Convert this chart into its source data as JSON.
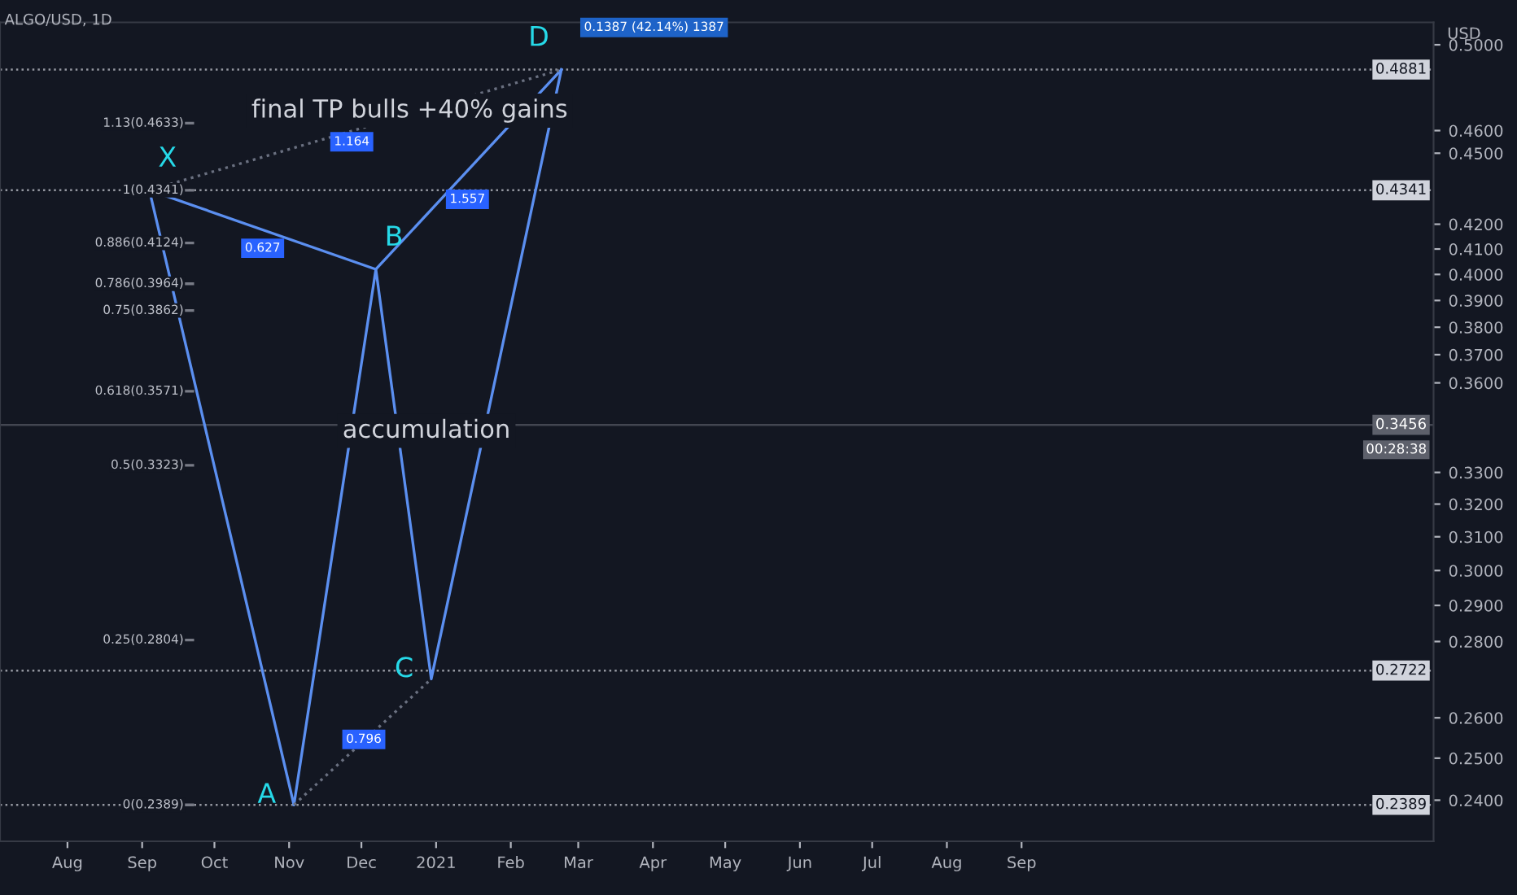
{
  "chart_data": {
    "type": "line",
    "title": "ALGO/USD, 1D",
    "series": [
      {
        "color": "#5b8ff0",
        "line_style": "solid",
        "x": [
          "2020-09-04",
          "2020-11-03",
          "2020-12-07",
          "2020-12-30",
          "2021-02-22"
        ],
        "values": [
          0.4341,
          0.2389,
          0.402,
          0.27,
          0.4881
        ]
      },
      {
        "color": "#5b8ff0",
        "line_style": "solid",
        "x": [
          "2020-09-04",
          "2020-12-07",
          "2021-02-22"
        ],
        "values": [
          0.4341,
          0.402,
          0.4881
        ]
      },
      {
        "color": "#6a7080",
        "line_style": "dotted",
        "x": [
          "2020-11-03",
          "2020-12-30"
        ],
        "values": [
          0.2389,
          0.27
        ]
      },
      {
        "color": "#6a7080",
        "line_style": "dotted",
        "x": [
          "2020-09-04",
          "2021-02-22"
        ],
        "values": [
          0.4341,
          0.4881
        ]
      }
    ],
    "log": "y",
    "xlim": [
      "2020-07-04",
      "2022-02-19"
    ],
    "xticks": [
      {
        "value": "2020-08-01",
        "label": "Aug"
      },
      {
        "value": "2020-09-01",
        "label": "Sep"
      },
      {
        "value": "2020-10-01",
        "label": "Oct"
      },
      {
        "value": "2020-11-01",
        "label": "Nov"
      },
      {
        "value": "2020-12-01",
        "label": "Dec"
      },
      {
        "value": "2021-01-01",
        "label": "2021"
      },
      {
        "value": "2021-02-01",
        "label": "Feb"
      },
      {
        "value": "2021-03-01",
        "label": "Mar"
      },
      {
        "value": "2021-04-01",
        "label": "Apr"
      },
      {
        "value": "2021-05-01",
        "label": "May"
      },
      {
        "value": "2021-06-01",
        "label": "Jun"
      },
      {
        "value": "2021-07-01",
        "label": "Jul"
      },
      {
        "value": "2021-08-01",
        "label": "Aug"
      },
      {
        "value": "2021-09-01",
        "label": "Sep"
      }
    ],
    "ylim": [
      0.2306,
      0.511
    ],
    "yticks": [
      {
        "value": 0.24,
        "label": "0.2400"
      },
      {
        "value": 0.25,
        "label": "0.2500"
      },
      {
        "value": 0.26,
        "label": "0.2600"
      },
      {
        "value": 0.28,
        "label": "0.2800"
      },
      {
        "value": 0.29,
        "label": "0.2900"
      },
      {
        "value": 0.3,
        "label": "0.3000"
      },
      {
        "value": 0.31,
        "label": "0.3100"
      },
      {
        "value": 0.32,
        "label": "0.3200"
      },
      {
        "value": 0.33,
        "label": "0.3300"
      },
      {
        "value": 0.36,
        "label": "0.3600"
      },
      {
        "value": 0.37,
        "label": "0.3700"
      },
      {
        "value": 0.38,
        "label": "0.3800"
      },
      {
        "value": 0.39,
        "label": "0.3900"
      },
      {
        "value": 0.4,
        "label": "0.4000"
      },
      {
        "value": 0.41,
        "label": "0.4100"
      },
      {
        "value": 0.42,
        "label": "0.4200"
      },
      {
        "value": 0.45,
        "label": "0.4500"
      },
      {
        "value": 0.46,
        "label": "0.4600"
      },
      {
        "value": 0.5,
        "label": "0.5000"
      }
    ],
    "y2label": "USD",
    "ref_lines": [
      {
        "axis": "y",
        "value": 0.4881,
        "label": "0.4881",
        "color": "#9598a1",
        "line_style": "dotted"
      },
      {
        "axis": "y",
        "value": 0.4341,
        "label": "0.4341",
        "color": "#9598a1",
        "line_style": "dotted"
      },
      {
        "axis": "y",
        "value": 0.3456,
        "label": "0.3456",
        "color": "#434651",
        "line_style": "solid"
      },
      {
        "axis": "y",
        "value": 0.2722,
        "label": "0.2722",
        "color": "#9598a1",
        "line_style": "dotted"
      },
      {
        "axis": "y",
        "value": 0.2389,
        "label": "0.2389",
        "color": "#9598a1",
        "line_style": "dotted"
      },
      {
        "axis": "y",
        "value": 0.4633,
        "label": "1.13(0.4633)",
        "color": "#787b86",
        "line_style": "solid"
      },
      {
        "axis": "y",
        "value": 0.4341,
        "label": "1(0.4341)",
        "color": "#787b86",
        "line_style": "solid"
      },
      {
        "axis": "y",
        "value": 0.4124,
        "label": "0.886(0.4124)",
        "color": "#787b86",
        "line_style": "solid"
      },
      {
        "axis": "y",
        "value": 0.3964,
        "label": "0.786(0.3964)",
        "color": "#787b86",
        "line_style": "solid"
      },
      {
        "axis": "y",
        "value": 0.3862,
        "label": "0.75(0.3862)",
        "color": "#787b86",
        "line_style": "solid"
      },
      {
        "axis": "y",
        "value": 0.3571,
        "label": "0.618(0.3571)",
        "color": "#787b86",
        "line_style": "solid"
      },
      {
        "axis": "y",
        "value": 0.3323,
        "label": "0.5(0.3323)",
        "color": "#787b86",
        "line_style": "solid"
      },
      {
        "axis": "y",
        "value": 0.2804,
        "label": "0.25(0.2804)",
        "color": "#787b86",
        "line_style": "solid"
      },
      {
        "axis": "y",
        "value": 0.2389,
        "label": "0(0.2389)",
        "color": "#787b86",
        "line_style": "solid"
      }
    ],
    "annotations": [
      {
        "text": "X",
        "x": "2020-09-04",
        "y": 0.4341
      },
      {
        "text": "A",
        "x": "2020-11-03",
        "y": 0.2389
      },
      {
        "text": "B",
        "x": "2020-12-07",
        "y": 0.402
      },
      {
        "text": "C",
        "x": "2020-12-30",
        "y": 0.27
      },
      {
        "text": "D",
        "x": "2021-02-22",
        "y": 0.4881
      },
      {
        "text": "1.164",
        "x": "2020-11-27",
        "y": 0.455
      },
      {
        "text": "0.627",
        "x": "2020-10-21",
        "y": 0.4103
      },
      {
        "text": "1.557",
        "x": "2021-01-14",
        "y": 0.4303
      },
      {
        "text": "0.796",
        "x": "2020-12-02",
        "y": 0.2546
      },
      "0.1387 (42.14%) 1387",
      {
        "text": "final TP bulls +40% gains",
        "x": "2020-12-21",
        "y": 0.469
      },
      {
        "text": "accumulation",
        "x": "2020-12-28",
        "y": 0.3436
      },
      "00:28:38"
    ]
  }
}
